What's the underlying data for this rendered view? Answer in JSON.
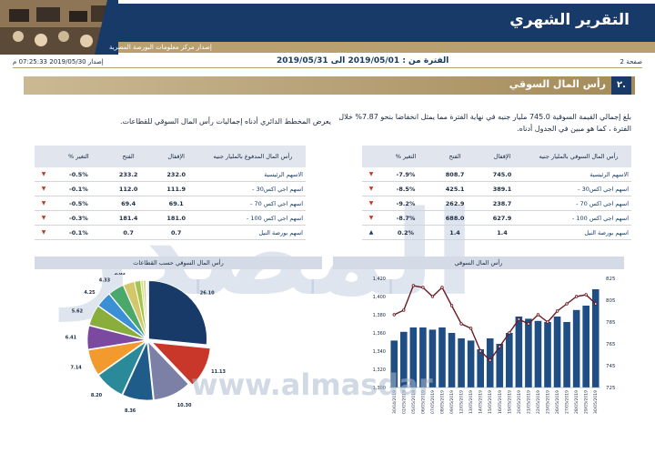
{
  "header": {
    "title": "التقرير الشهري",
    "subtitle": "إصدار مركز معلومات البورصة المصرية"
  },
  "info_bar": {
    "page": "صفحة 2",
    "period_label": "الفترة من : 2019/05/01 الى 2019/05/31",
    "issue": "إصدار 2019/05/30 07:25:33 م"
  },
  "section": {
    "number": "٢.",
    "title": "رأس المال السوقي"
  },
  "paragraphs": {
    "right": "بلغ إجمالي القيمة السوقية 745.0 مليار جنيه في نهاية الفترة مما يمثل انخفاضا بنحو 7.87% خلال الفترة ، كما هو مبين في الجدول أدناه.",
    "left": "يعرض المخطط الدائري أدناه إجماليات رأس المال السوقي للقطاعات."
  },
  "table_right": {
    "headers": [
      "رأس المال السوقي بالمليار جنيه",
      "الإقفال",
      "الفتح",
      "% التغير"
    ],
    "rows": [
      {
        "name": "الاسهم الرئيسية",
        "close": "745.0",
        "open": "808.7",
        "change": "-7.9%",
        "dir": "down"
      },
      {
        "name": "- اسهم اجي اكس30",
        "close": "389.1",
        "open": "425.1",
        "change": "-8.5%",
        "dir": "down"
      },
      {
        "name": "- اسهم اجي اكس 70",
        "close": "238.7",
        "open": "262.9",
        "change": "-9.2%",
        "dir": "down"
      },
      {
        "name": "- اسهم اجي اكس 100",
        "close": "627.9",
        "open": "688.0",
        "change": "-8.7%",
        "dir": "down"
      },
      {
        "name": "اسهم بورصة النيل",
        "close": "1.4",
        "open": "1.4",
        "change": "0.2%",
        "dir": "up"
      }
    ]
  },
  "table_left": {
    "headers": [
      "رأس المال المدفوع بالمليار جنيه",
      "الإقفال",
      "الفتح",
      "% التغير"
    ],
    "rows": [
      {
        "name": "الاسهم الرئيسية",
        "close": "232.0",
        "open": "233.2",
        "change": "-0.5%",
        "dir": "down"
      },
      {
        "name": "- اسهم اجي اكس30",
        "close": "111.9",
        "open": "112.0",
        "change": "-0.1%",
        "dir": "down"
      },
      {
        "name": "- اسهم اجي اكس 70",
        "close": "69.1",
        "open": "69.4",
        "change": "-0.5%",
        "dir": "down"
      },
      {
        "name": "- اسهم اجي اكس 100",
        "close": "181.0",
        "open": "181.4",
        "change": "-0.3%",
        "dir": "down"
      },
      {
        "name": "اسهم بورصة النيل",
        "close": "0.7",
        "open": "0.7",
        "change": "-0.1%",
        "dir": "down"
      }
    ]
  },
  "watermark": {
    "text": "المصدر",
    "url": "www.almasdar"
  },
  "colors": {
    "navy": "#173a68",
    "gold": "#b8a070",
    "bar": "#1f4e84",
    "line": "#6b1a22",
    "down": "#c0392b"
  },
  "chart_data": [
    {
      "type": "bar",
      "title": "رأس المال السوقي",
      "categories": [
        "30/04/2019",
        "02/05/2019",
        "05/05/2019",
        "06/05/2019",
        "07/05/2019",
        "08/05/2019",
        "09/05/2019",
        "12/05/2019",
        "13/05/2019",
        "14/05/2019",
        "15/05/2019",
        "16/05/2019",
        "19/05/2019",
        "20/05/2019",
        "21/05/2019",
        "22/05/2019",
        "23/05/2019",
        "26/05/2019",
        "27/05/2019",
        "28/05/2019",
        "29/05/2019",
        "30/05/2019"
      ],
      "series": [
        {
          "values": [
            768,
            776,
            780,
            780,
            778,
            780,
            775,
            770,
            768,
            760,
            770,
            765,
            775,
            790,
            788,
            786,
            785,
            790,
            785,
            796,
            800,
            815
          ]
        },
        {
          "values": [
            1380,
            1385,
            1412,
            1410,
            1400,
            1410,
            1390,
            1370,
            1365,
            1340,
            1330,
            1345,
            1360,
            1375,
            1370,
            1380,
            1372,
            1384,
            1392,
            1400,
            1402,
            1392
          ]
        }
      ],
      "ylim": [
        725,
        825
      ],
      "y2lim": [
        1300,
        1420
      ],
      "yticks": [
        "725",
        "745",
        "765",
        "785",
        "805",
        "825"
      ],
      "y2ticks": [
        "1,300",
        "1,320",
        "1,340",
        "1,360",
        "1,380",
        "1,400",
        "1,420"
      ]
    },
    {
      "type": "pie",
      "title": "رأس المال السوقي حسب القطاعات",
      "slices": [
        {
          "label": "26.10",
          "value": 26.1,
          "color": "#173a68"
        },
        {
          "label": "11.13",
          "value": 11.13,
          "color": "#c9362a"
        },
        {
          "label": "10.30",
          "value": 10.3,
          "color": "#7c80a6"
        },
        {
          "label": "8.36",
          "value": 8.36,
          "color": "#1f5c8a"
        },
        {
          "label": "8.20",
          "value": 8.2,
          "color": "#2a8a9a"
        },
        {
          "label": "7.14",
          "value": 7.14,
          "color": "#f29a2e"
        },
        {
          "label": "6.41",
          "value": 6.41,
          "color": "#7b4aa0"
        },
        {
          "label": "5.62",
          "value": 5.62,
          "color": "#8aae3b"
        },
        {
          "label": "4.25",
          "value": 4.25,
          "color": "#3b8fd4"
        },
        {
          "label": "4.33",
          "value": 4.33,
          "color": "#4aa86b"
        },
        {
          "label": "3.05",
          "value": 3.05,
          "color": "#d4c66a"
        },
        {
          "label": "1.64",
          "value": 1.64,
          "color": "#a4c34a"
        },
        {
          "label": "0.62",
          "value": 0.62,
          "color": "#c3e37c"
        },
        {
          "label": "0.80",
          "value": 0.8,
          "color": "#e0d5a0"
        },
        {
          "label": "0.22",
          "value": 0.22,
          "color": "#5a6d98"
        },
        {
          "label": "0.13",
          "value": 0.13,
          "color": "#3d5a80"
        }
      ]
    }
  ]
}
